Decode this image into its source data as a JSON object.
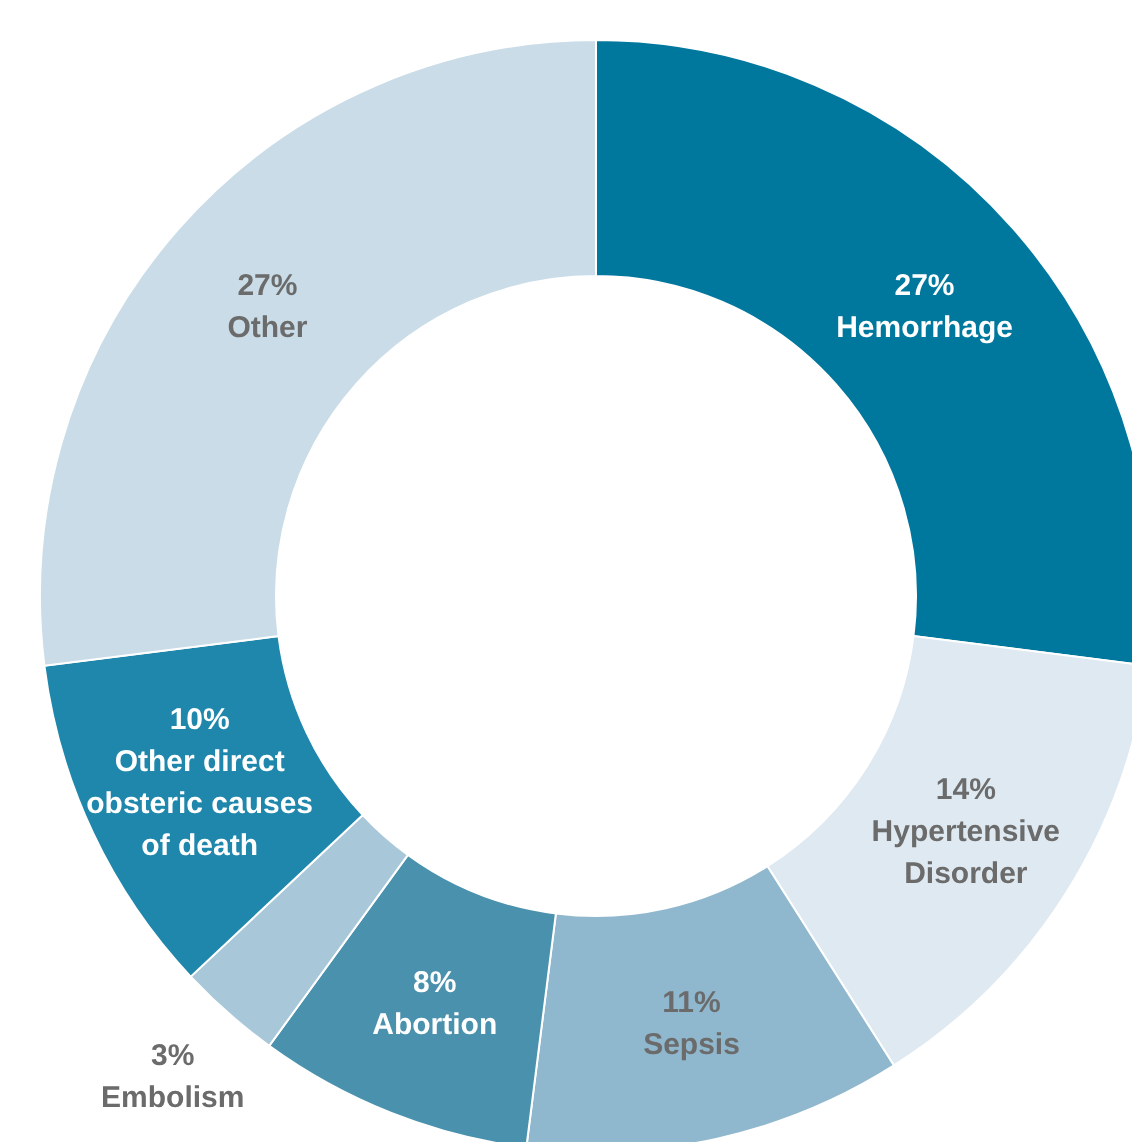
{
  "chart_data": {
    "type": "donut",
    "categories": [
      "Hemorrhage",
      "Hypertensive Disorder",
      "Sepsis",
      "Abortion",
      "Embolism",
      "Other direct obsteric causes of death",
      "Other"
    ],
    "values": [
      27,
      14,
      11,
      8,
      3,
      10,
      27
    ],
    "value_labels": [
      "27%",
      "14%",
      "11%",
      "8%",
      "3%",
      "10%",
      "27%"
    ],
    "colors": [
      "#00789e",
      "#dfe9f1",
      "#8fb7cd",
      "#4a91ad",
      "#a8c8da",
      "#1f87ab",
      "#c9dce7"
    ]
  }
}
